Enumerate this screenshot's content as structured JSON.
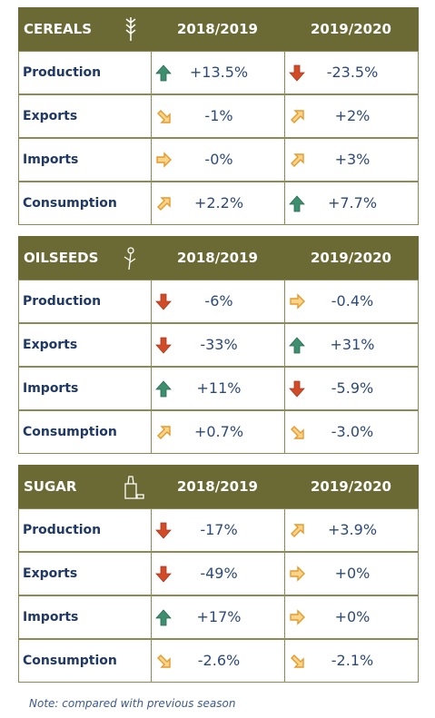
{
  "sections": [
    {
      "title": "CEREALS",
      "columns": [
        "2018/2019",
        "2019/2020"
      ],
      "rows": [
        {
          "label": "Production",
          "values": [
            "+13.5%",
            "-23.5%"
          ]
        },
        {
          "label": "Exports",
          "values": [
            "-1%",
            "+2%"
          ]
        },
        {
          "label": "Imports",
          "values": [
            "-0%",
            "+3%"
          ]
        },
        {
          "label": "Consumption",
          "values": [
            "+2.2%",
            "+7.7%"
          ]
        }
      ]
    },
    {
      "title": "OILSEEDS",
      "columns": [
        "2018/2019",
        "2019/2020"
      ],
      "rows": [
        {
          "label": "Production",
          "values": [
            "-6%",
            "-0.4%"
          ]
        },
        {
          "label": "Exports",
          "values": [
            "-33%",
            "+31%"
          ]
        },
        {
          "label": "Imports",
          "values": [
            "+11%",
            "-5.9%"
          ]
        },
        {
          "label": "Consumption",
          "values": [
            "+0.7%",
            "-3.0%"
          ]
        }
      ]
    },
    {
      "title": "SUGAR",
      "columns": [
        "2018/2019",
        "2019/2020"
      ],
      "rows": [
        {
          "label": "Production",
          "values": [
            "-17%",
            "+3.9%"
          ]
        },
        {
          "label": "Exports",
          "values": [
            "-49%",
            "+0%"
          ]
        },
        {
          "label": "Imports",
          "values": [
            "+17%",
            "+0%"
          ]
        },
        {
          "label": "Consumption",
          "values": [
            "-2.6%",
            "-2.1%"
          ]
        }
      ]
    }
  ],
  "note": "Note: compared with previous season"
}
